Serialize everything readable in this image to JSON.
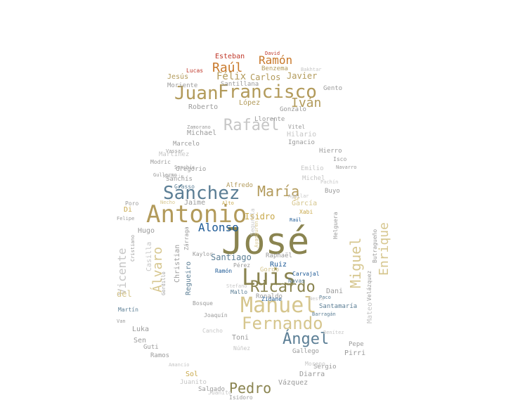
{
  "palette": {
    "gold": "#c8a84a",
    "khaki": "#a8a26c",
    "olive": "#8a8450",
    "blue": "#1e5a96",
    "steel": "#5b7e95",
    "grey": "#9a9a9a",
    "lightgrey": "#c6c6c6",
    "sand": "#d6c68e",
    "red": "#c0392b",
    "orange": "#c8782a",
    "tan": "#b29a5a"
  },
  "words": [
    {
      "text": "José",
      "color": "olive"
    },
    {
      "text": "Antonio",
      "color": "tan"
    },
    {
      "text": "Manuel",
      "color": "sand"
    },
    {
      "text": "Luis",
      "color": "olive"
    },
    {
      "text": "Francisco",
      "color": "tan"
    },
    {
      "text": "Fernando",
      "color": "sand"
    },
    {
      "text": "Juan",
      "color": "tan"
    },
    {
      "text": "Sánchez",
      "color": "steel"
    },
    {
      "text": "Ricardo",
      "color": "olive"
    },
    {
      "text": "María",
      "color": "tan"
    },
    {
      "text": "Rafael",
      "color": "lightgrey"
    },
    {
      "text": "Ángel",
      "color": "steel"
    },
    {
      "text": "Pedro",
      "color": "olive"
    },
    {
      "text": "Miguel",
      "color": "sand"
    },
    {
      "text": "Enrique",
      "color": "sand"
    },
    {
      "text": "Iván",
      "color": "tan"
    },
    {
      "text": "Raúl",
      "color": "orange"
    },
    {
      "text": "Ramón",
      "color": "orange"
    },
    {
      "text": "Alonso",
      "color": "blue"
    },
    {
      "text": "Álvaro",
      "color": "sand"
    },
    {
      "text": "Vicente",
      "color": "lightgrey"
    },
    {
      "text": "Félix",
      "color": "tan"
    },
    {
      "text": "Carlos",
      "color": "tan"
    },
    {
      "text": "Javier",
      "color": "tan"
    },
    {
      "text": "Jesús",
      "color": "tan"
    },
    {
      "text": "Esteban",
      "color": "red"
    },
    {
      "text": "Santiago",
      "color": "steel"
    },
    {
      "text": "Michael",
      "color": "grey"
    },
    {
      "text": "Roberto",
      "color": "grey"
    },
    {
      "text": "López",
      "color": "tan"
    },
    {
      "text": "Isidro",
      "color": "gold"
    },
    {
      "text": "García",
      "color": "sand"
    },
    {
      "text": "Ruiz",
      "color": "blue"
    },
    {
      "text": "Dani",
      "color": "grey"
    },
    {
      "text": "Toni",
      "color": "grey"
    },
    {
      "text": "Christian",
      "color": "grey"
    },
    {
      "text": "Sanchís",
      "color": "grey"
    },
    {
      "text": "Jaime",
      "color": "grey"
    },
    {
      "text": "Gregorio",
      "color": "grey"
    },
    {
      "text": "Hugo",
      "color": "grey"
    },
    {
      "text": "Casilla",
      "color": "lightgrey"
    },
    {
      "text": "del",
      "color": "sand"
    },
    {
      "text": "Di",
      "color": "gold"
    },
    {
      "text": "Vázquez",
      "color": "grey"
    },
    {
      "text": "Diarra",
      "color": "grey"
    },
    {
      "text": "Sergio",
      "color": "grey"
    },
    {
      "text": "Juanito",
      "color": "lightgrey"
    },
    {
      "text": "Sol",
      "color": "gold"
    },
    {
      "text": "Ramos",
      "color": "grey"
    },
    {
      "text": "Luka",
      "color": "grey"
    },
    {
      "text": "Sen",
      "color": "grey"
    },
    {
      "text": "Guti",
      "color": "grey"
    },
    {
      "text": "Núñez",
      "color": "lightgrey"
    },
    {
      "text": "Ronaldo",
      "color": "grey"
    },
    {
      "text": "Raphaël",
      "color": "grey"
    },
    {
      "text": "Alfredo",
      "color": "tan"
    },
    {
      "text": "Hilario",
      "color": "lightgrey"
    },
    {
      "text": "Ignacio",
      "color": "grey"
    },
    {
      "text": "Hierro",
      "color": "grey"
    },
    {
      "text": "Isco",
      "color": "grey"
    },
    {
      "text": "Navarro",
      "color": "grey"
    },
    {
      "text": "Emilio",
      "color": "lightgrey"
    },
    {
      "text": "Michel",
      "color": "lightgrey"
    },
    {
      "text": "Pachín",
      "color": "lightgrey"
    },
    {
      "text": "Buyo",
      "color": "grey"
    },
    {
      "text": "Pepe",
      "color": "grey"
    },
    {
      "text": "Pirri",
      "color": "grey"
    },
    {
      "text": "Mateo",
      "color": "lightgrey"
    },
    {
      "text": "Gento",
      "color": "grey"
    },
    {
      "text": "Benzema",
      "color": "tan"
    },
    {
      "text": "Moriente",
      "color": "grey"
    },
    {
      "text": "Santillana",
      "color": "grey"
    },
    {
      "text": "Marcelo",
      "color": "grey"
    },
    {
      "text": "Vassar",
      "color": "grey"
    },
    {
      "text": "Martínez",
      "color": "lightgrey"
    },
    {
      "text": "Modric",
      "color": "grey"
    },
    {
      "text": "Zamorano",
      "color": "grey"
    },
    {
      "text": "Llorente",
      "color": "grey"
    },
    {
      "text": "Vitel",
      "color": "grey"
    },
    {
      "text": "Gonzalo",
      "color": "grey"
    },
    {
      "text": "Lucas",
      "color": "red"
    },
    {
      "text": "David",
      "color": "red"
    },
    {
      "text": "Zidane",
      "color": "blue"
    },
    {
      "text": "Carvajal",
      "color": "blue"
    },
    {
      "text": "Kaylor",
      "color": "grey"
    },
    {
      "text": "Regueiro",
      "color": "steel"
    },
    {
      "text": "Santamaría",
      "color": "steel"
    },
    {
      "text": "Bosque",
      "color": "grey"
    },
    {
      "text": "Joaquín",
      "color": "grey"
    },
    {
      "text": "Pérez",
      "color": "grey"
    },
    {
      "text": "Martín",
      "color": "steel"
    },
    {
      "text": "Felipe",
      "color": "grey"
    },
    {
      "text": "Poro",
      "color": "grey"
    },
    {
      "text": "Gallego",
      "color": "grey"
    },
    {
      "text": "Ramón",
      "color": "blue"
    },
    {
      "text": "Navas",
      "color": "steel"
    },
    {
      "text": "Gordillo",
      "color": "grey"
    },
    {
      "text": "Helguera",
      "color": "grey"
    },
    {
      "text": "Butragueño",
      "color": "grey"
    },
    {
      "text": "Velázquez",
      "color": "grey"
    },
    {
      "text": "Salgado",
      "color": "grey"
    },
    {
      "text": "Isidoro",
      "color": "grey"
    },
    {
      "text": "Moreno",
      "color": "lightgrey"
    },
    {
      "text": "Paco",
      "color": "steel"
    },
    {
      "text": "Sanchís",
      "color": "grey"
    },
    {
      "text": "Grasso",
      "color": "steel"
    },
    {
      "text": "Zárraga",
      "color": "grey"
    },
    {
      "text": "Mallo",
      "color": "steel"
    },
    {
      "text": "Stefano",
      "color": "lightgrey"
    },
    {
      "text": "Cristiano",
      "color": "grey"
    },
    {
      "text": "Segurola",
      "color": "lightgrey"
    },
    {
      "text": "Agustín",
      "color": "lightgrey"
    },
    {
      "text": "Raúl",
      "color": "blue"
    },
    {
      "text": "Xabi",
      "color": "gold"
    },
    {
      "text": "Gordo",
      "color": "sand"
    },
    {
      "text": "Nesta",
      "color": "lightgrey"
    },
    {
      "text": "Barragán",
      "color": "steel"
    },
    {
      "text": "Benítez",
      "color": "lightgrey"
    },
    {
      "text": "Juanito",
      "color": "lightgrey"
    },
    {
      "text": "Amancio",
      "color": "lightgrey"
    },
    {
      "text": "Ayanguren",
      "color": "sand"
    },
    {
      "text": "Necho",
      "color": "sand"
    },
    {
      "text": "Alto",
      "color": "gold"
    },
    {
      "text": "Sr",
      "color": "gold"
    },
    {
      "text": "Van",
      "color": "grey"
    },
    {
      "text": "Gullermo",
      "color": "grey"
    },
    {
      "text": "Aguilar",
      "color": "lightgrey"
    },
    {
      "text": "Bakhtar",
      "color": "lightgrey"
    },
    {
      "text": "Cancho",
      "color": "lightgrey"
    }
  ]
}
